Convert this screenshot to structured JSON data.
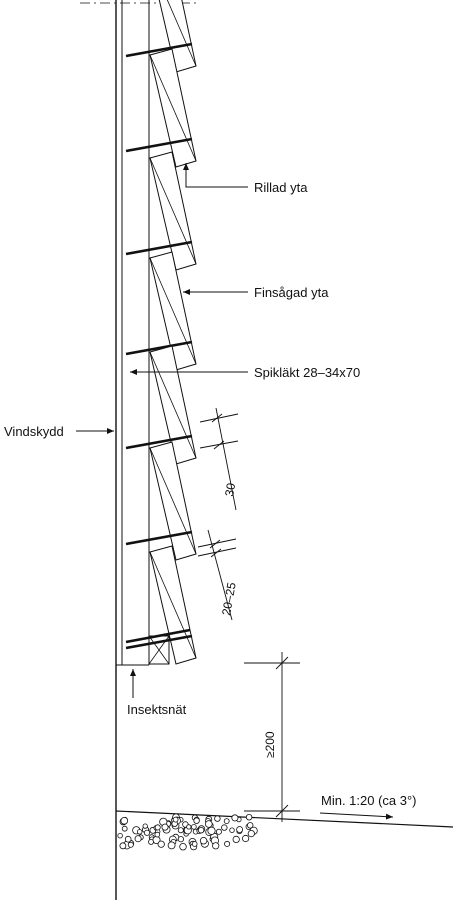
{
  "labels": {
    "rillad": "Rillad yta",
    "finsagad": "Finsågad yta",
    "spiklakt": "Spikläkt 28–34x70",
    "vindskydd": "Vindskydd",
    "insektsnat": "Insektsnät",
    "slope": "Min. 1:20 (ca 3°)"
  },
  "dimensions": {
    "d30": "30",
    "d2025": "20–25",
    "d200": "≥200"
  },
  "colors": {
    "ink": "#111111",
    "background": "#ffffff"
  }
}
